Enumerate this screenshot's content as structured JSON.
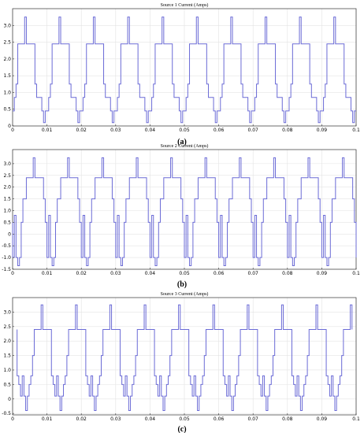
{
  "chart_data": [
    {
      "type": "line",
      "title": "Source 1 Current (Amps)",
      "caption": "(a)",
      "x_ticks": [
        "0",
        "0.01",
        "0.02",
        "0.03",
        "0.04",
        "0.05",
        "0.06",
        "0.07",
        "0.08",
        "0.09",
        "0.1"
      ],
      "y_ticks": [
        "0",
        "0.5",
        "1.0",
        "1.5",
        "2.0",
        "2.5",
        "3.0"
      ],
      "xlim": [
        0,
        0.1
      ],
      "ylim": [
        0,
        3.5
      ],
      "grid": true,
      "color": "#6b6bd6",
      "period": 0.01,
      "phase": 0,
      "waveform_x": [
        0,
        0.0005,
        0.001,
        0.0015,
        0.0035,
        0.004,
        0.0065,
        0.007,
        0.0085,
        0.009,
        0.0095,
        0.01
      ],
      "waveform_y": [
        0.45,
        0.85,
        1.25,
        2.45,
        3.25,
        2.45,
        1.25,
        0.85,
        0.45,
        0.1,
        0.45,
        0.45
      ]
    },
    {
      "type": "line",
      "title": "Source 2 Current (Amps)",
      "caption": "(b)",
      "x_ticks": [
        "0",
        "0.01",
        "0.02",
        "0.03",
        "0.04",
        "0.05",
        "0.06",
        "0.07",
        "0.08",
        "0.09",
        "0.1"
      ],
      "y_ticks": [
        "-1.5",
        "-1.0",
        "-0.5",
        "0",
        "0.5",
        "1.0",
        "1.5",
        "2.0",
        "2.5",
        "3.0"
      ],
      "xlim": [
        0,
        0.1
      ],
      "ylim": [
        -1.5,
        3.6
      ],
      "grid": true,
      "color": "#6b6bd6",
      "period": 0.01,
      "phase": 0.0025,
      "waveform_x": [
        0,
        0.0005,
        0.001,
        0.0015,
        0.0035,
        0.004,
        0.0065,
        0.007,
        0.0075,
        0.008,
        0.0085,
        0.009,
        0.0095,
        0.01
      ],
      "waveform_y": [
        0.5,
        1.5,
        1.5,
        2.4,
        3.25,
        2.4,
        1.5,
        0.5,
        -1.0,
        0.8,
        -1.0,
        -1.35,
        -1.0,
        0.5
      ]
    },
    {
      "type": "line",
      "title": "Source 3 Current (Amps)",
      "caption": "(c)",
      "x_ticks": [
        "0",
        "0.01",
        "0.02",
        "0.03",
        "0.04",
        "0.05",
        "0.06",
        "0.07",
        "0.08",
        "0.09",
        "0.1"
      ],
      "y_ticks": [
        "-0.5",
        "0",
        "0.5",
        "1.0",
        "1.5",
        "2.0",
        "2.5",
        "3.0"
      ],
      "xlim": [
        0,
        0.1
      ],
      "ylim": [
        -0.55,
        3.5
      ],
      "grid": true,
      "color": "#6b6bd6",
      "period": 0.01,
      "phase": 0.0048,
      "waveform_x": [
        0,
        0.0005,
        0.001,
        0.0015,
        0.0035,
        0.004,
        0.0065,
        0.007,
        0.0075,
        0.008,
        0.0085,
        0.009,
        0.0095,
        0.01
      ],
      "waveform_y": [
        0.5,
        0.8,
        1.5,
        2.4,
        3.25,
        2.4,
        0.8,
        0.5,
        0.1,
        0.8,
        0.1,
        -0.4,
        0.1,
        0.5
      ]
    }
  ]
}
